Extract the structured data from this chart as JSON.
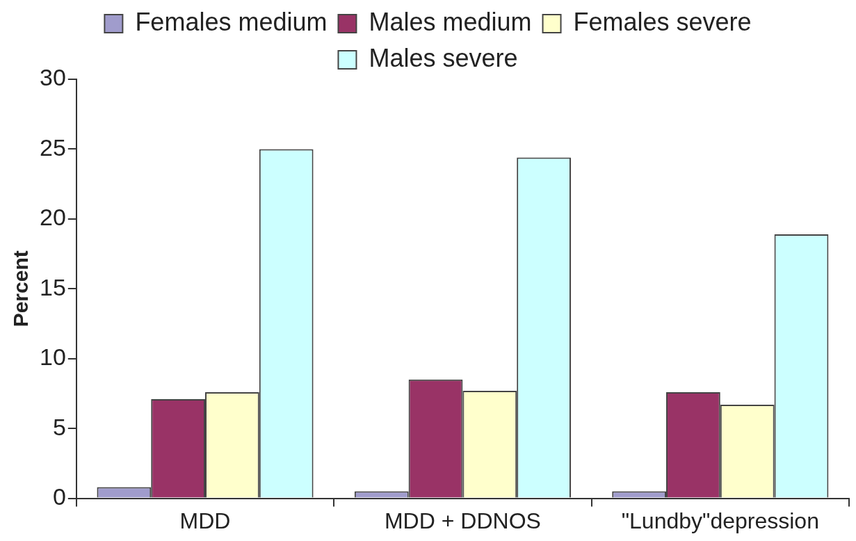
{
  "chart_data": {
    "type": "bar",
    "ylabel": "Percent",
    "categories": [
      "MDD",
      "MDD + DDNOS",
      "\"Lundby\"depression"
    ],
    "series": [
      {
        "name": "Females medium",
        "color": "#a09ccc",
        "values": [
          0.8,
          0.5,
          0.5
        ]
      },
      {
        "name": "Males medium",
        "color": "#993366",
        "values": [
          7.1,
          8.5,
          7.6
        ]
      },
      {
        "name": "Females severe",
        "color": "#ffffcc",
        "values": [
          7.6,
          7.7,
          6.7
        ]
      },
      {
        "name": "Males severe",
        "color": "#ccffff",
        "values": [
          25,
          24.4,
          18.9
        ]
      }
    ],
    "ylim": [
      0,
      30
    ],
    "yticks": [
      0,
      5,
      10,
      15,
      20,
      25,
      30
    ],
    "grid": false,
    "legend": "top"
  }
}
